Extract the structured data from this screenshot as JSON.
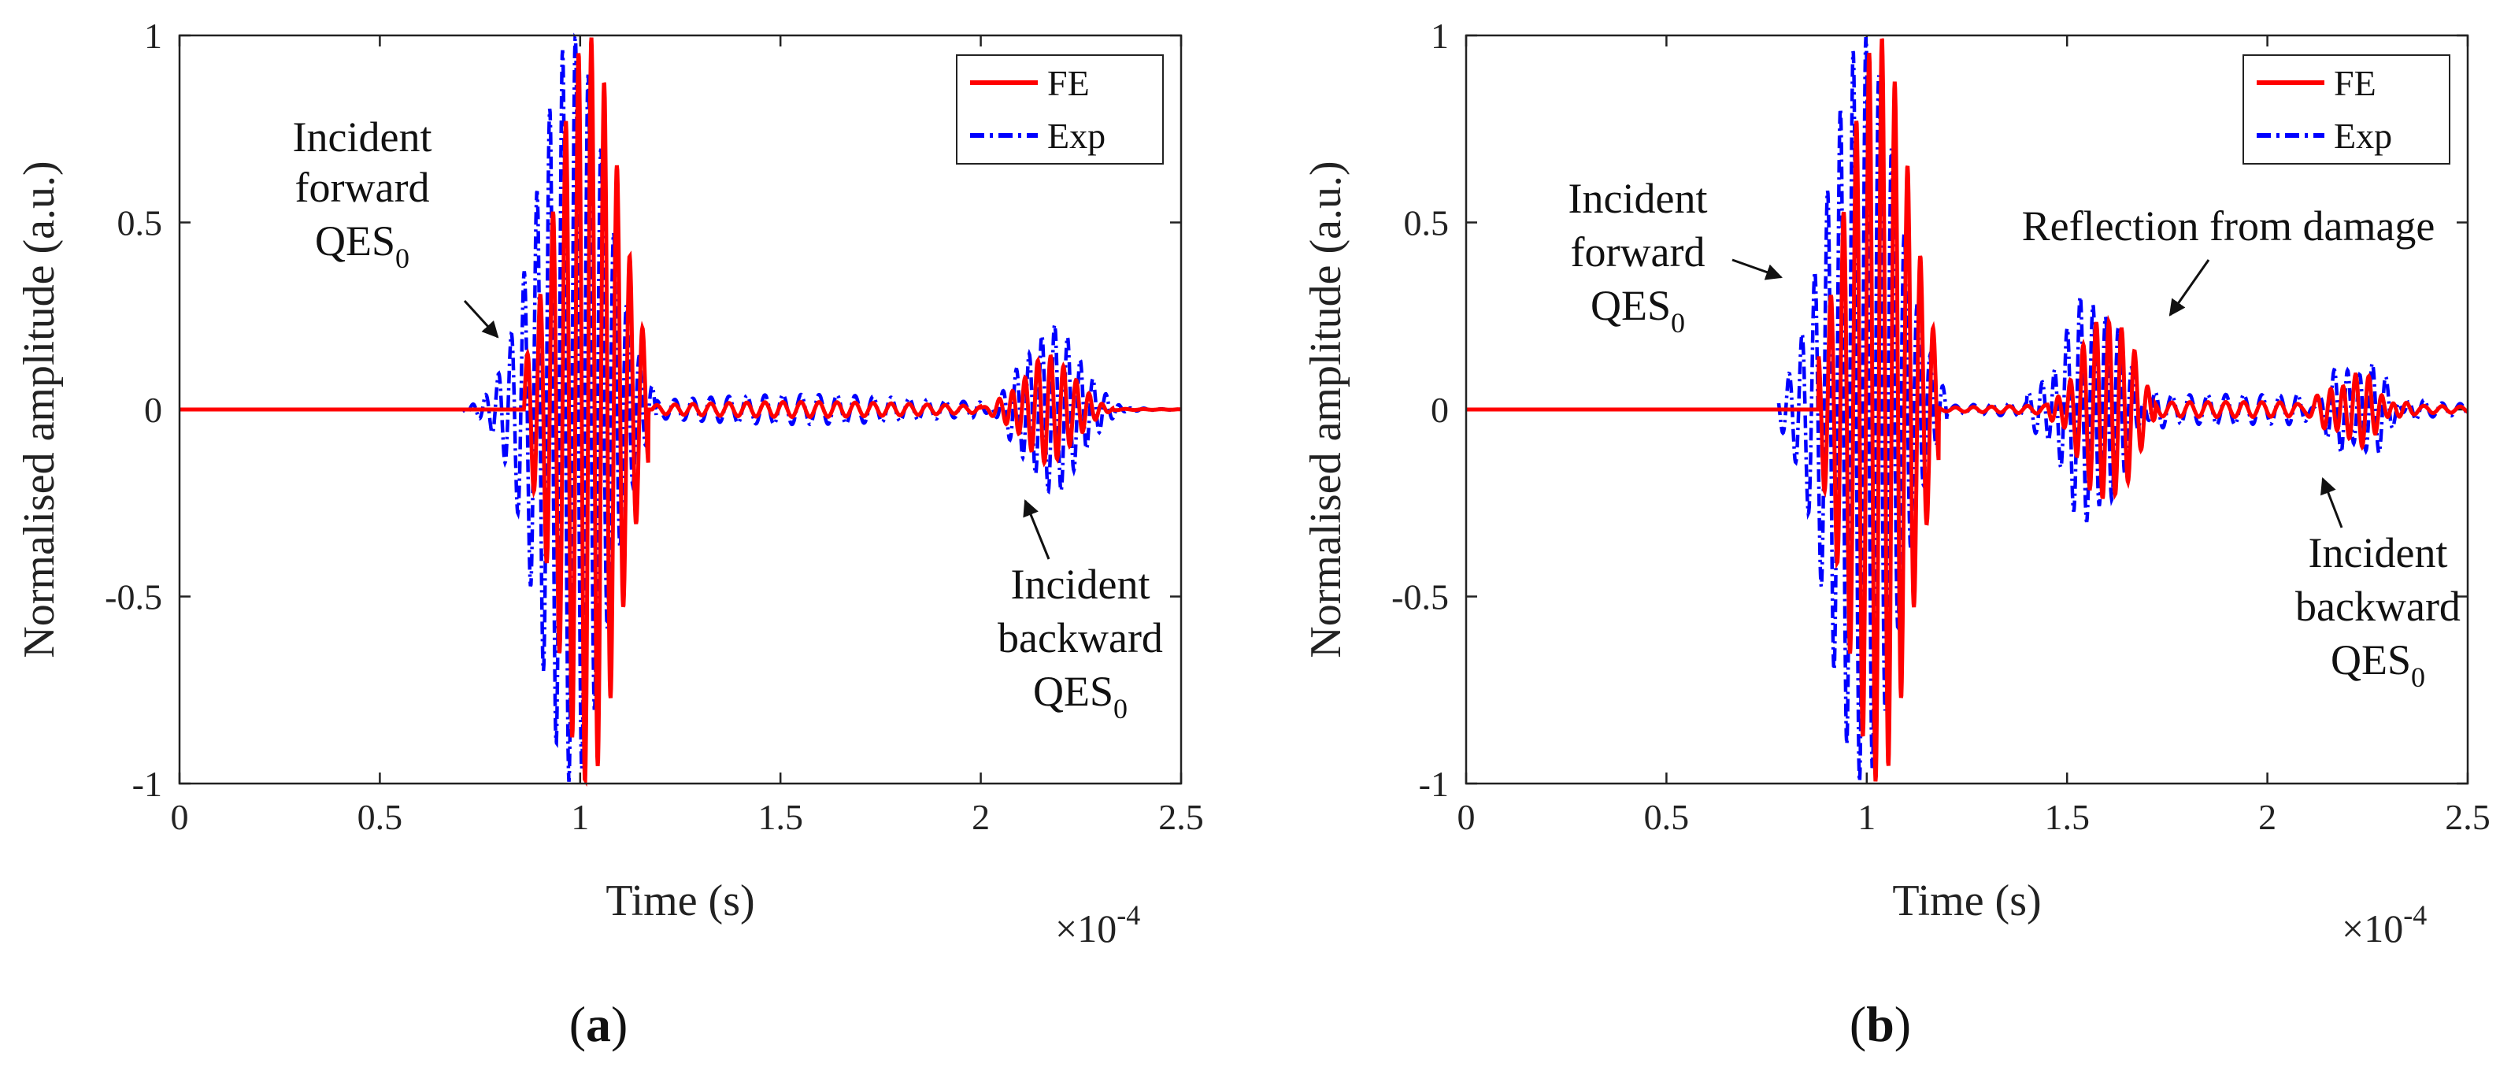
{
  "chart_data": [
    {
      "id": "a",
      "type": "line",
      "panel_label": "a",
      "xlabel": "Time (s)",
      "ylabel": "Normalised amplitude (a.u.)",
      "xlim": [
        0,
        2.5
      ],
      "ylim": [
        -1,
        1
      ],
      "x_ticks": [
        "0",
        "0.5",
        "1",
        "1.5",
        "2",
        "2.5"
      ],
      "y_ticks": [
        "-1",
        "-0.5",
        "0",
        "0.5",
        "1"
      ],
      "x_multiplier": {
        "base": "×10",
        "exponent": "-4"
      },
      "legend": {
        "position": "top-right",
        "entries": [
          "FE",
          "Exp"
        ]
      },
      "series": [
        {
          "name": "FE",
          "color": "#ff0000",
          "style": "solid",
          "packets": [
            {
              "center": 1.02,
              "amplitude": 1.0,
              "width": 0.11,
              "onset": 0.86,
              "end": 1.17,
              "period": 0.032
            },
            {
              "center": 2.17,
              "amplitude": 0.14,
              "width": 0.09,
              "onset": 2.0,
              "end": 2.33,
              "period": 0.032
            },
            {
              "center": 1.55,
              "amplitude": 0.02,
              "width": 0.5,
              "onset": 1.18,
              "end": 2.5,
              "period": 0.045
            }
          ]
        },
        {
          "name": "Exp",
          "color": "#0000ff",
          "style": "dashdot",
          "packets": [
            {
              "center": 0.98,
              "amplitude": 1.0,
              "width": 0.12,
              "onset": 0.7,
              "end": 1.19,
              "period": 0.032
            },
            {
              "center": 2.18,
              "amplitude": 0.22,
              "width": 0.1,
              "onset": 1.95,
              "end": 2.42,
              "period": 0.032
            },
            {
              "center": 1.55,
              "amplitude": 0.04,
              "width": 0.5,
              "onset": 1.19,
              "end": 2.5,
              "period": 0.045
            }
          ]
        }
      ],
      "annotations": [
        {
          "lines": [
            "Incident",
            "forward"
          ],
          "sub_base": "QES",
          "sub": "0"
        },
        {
          "lines": [
            "Incident",
            "backward"
          ],
          "sub_base": "QES",
          "sub": "0"
        }
      ]
    },
    {
      "id": "b",
      "type": "line",
      "panel_label": "b",
      "xlabel": "Time (s)",
      "ylabel": "Normalised amplitude (a.u.)",
      "xlim": [
        0,
        2.5
      ],
      "ylim": [
        -1,
        1
      ],
      "x_ticks": [
        "0",
        "0.5",
        "1",
        "1.5",
        "2",
        "2.5"
      ],
      "y_ticks": [
        "-1",
        "-0.5",
        "0",
        "0.5",
        "1"
      ],
      "x_multiplier": {
        "base": "×10",
        "exponent": "-4"
      },
      "legend": {
        "position": "top-right",
        "entries": [
          "FE",
          "Exp"
        ]
      },
      "series": [
        {
          "name": "FE",
          "color": "#ff0000",
          "style": "solid",
          "packets": [
            {
              "center": 1.03,
              "amplitude": 1.0,
              "width": 0.11,
              "onset": 0.88,
              "end": 1.18,
              "period": 0.032
            },
            {
              "center": 1.6,
              "amplitude": 0.25,
              "width": 0.09,
              "onset": 1.45,
              "end": 1.72,
              "period": 0.032
            },
            {
              "center": 2.22,
              "amplitude": 0.09,
              "width": 0.08,
              "onset": 2.05,
              "end": 2.4,
              "period": 0.032
            },
            {
              "center": 1.9,
              "amplitude": 0.02,
              "width": 0.6,
              "onset": 1.18,
              "end": 2.5,
              "period": 0.045
            }
          ]
        },
        {
          "name": "Exp",
          "color": "#0000ff",
          "style": "dashdot",
          "packets": [
            {
              "center": 0.99,
              "amplitude": 1.0,
              "width": 0.12,
              "onset": 0.78,
              "end": 1.2,
              "period": 0.032
            },
            {
              "center": 1.56,
              "amplitude": 0.3,
              "width": 0.1,
              "onset": 1.4,
              "end": 1.75,
              "period": 0.032
            },
            {
              "center": 2.23,
              "amplitude": 0.12,
              "width": 0.09,
              "onset": 2.05,
              "end": 2.45,
              "period": 0.032
            },
            {
              "center": 1.9,
              "amplitude": 0.04,
              "width": 0.6,
              "onset": 1.2,
              "end": 2.5,
              "period": 0.045
            }
          ]
        }
      ],
      "annotations": [
        {
          "lines": [
            "Incident",
            "forward"
          ],
          "sub_base": "QES",
          "sub": "0"
        },
        {
          "lines": [
            "Reflection from damage"
          ]
        },
        {
          "lines": [
            "Incident",
            "backward"
          ],
          "sub_base": "QES",
          "sub": "0"
        }
      ]
    }
  ]
}
